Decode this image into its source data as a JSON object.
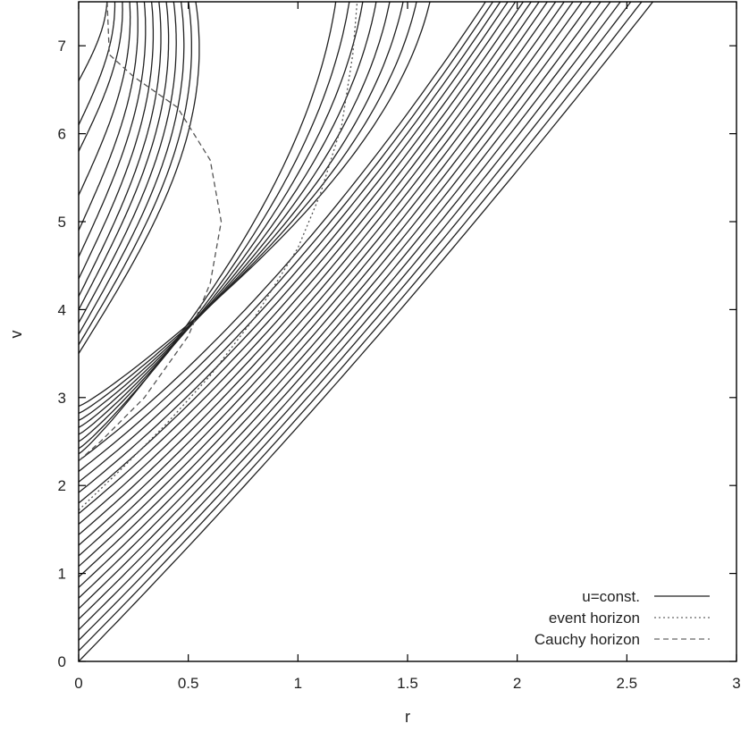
{
  "chart_data": {
    "type": "line",
    "title": "",
    "xlabel": "r",
    "ylabel": "v",
    "xlim": [
      0,
      3
    ],
    "ylim": [
      0,
      7.5
    ],
    "x_ticks": [
      "0",
      "0.5",
      "1",
      "1.5",
      "2",
      "2.5",
      "3"
    ],
    "y_ticks": [
      "0",
      "1",
      "2",
      "3",
      "4",
      "5",
      "6",
      "7"
    ],
    "grid": false,
    "legend_position": "bottom-right",
    "legend": [
      {
        "label": "u=const.",
        "style": "solid"
      },
      {
        "label": "event horizon",
        "style": "dotted"
      },
      {
        "label": "Cauchy horizon",
        "style": "dashed"
      }
    ],
    "series": [
      {
        "name": "u=const.",
        "style": "solid",
        "description_values": {
          "outgoing_lines_v_at_r0": [
            0.0,
            0.12,
            0.24,
            0.36,
            0.48,
            0.6,
            0.72,
            0.84,
            0.96,
            1.08,
            1.2,
            1.32,
            1.44,
            1.56,
            1.68,
            1.8,
            1.92,
            2.04,
            2.16,
            2.28
          ],
          "turning_curves_v_at_r0": [
            3.5,
            3.6,
            3.72,
            3.85,
            4.0,
            4.15,
            4.35,
            4.6,
            4.9,
            5.3,
            5.8,
            6.1,
            6.6
          ]
        }
      },
      {
        "name": "event horizon",
        "style": "dotted",
        "x": [
          0,
          0.2,
          0.4,
          0.6,
          0.8,
          1.0,
          1.1,
          1.2,
          1.25,
          1.27
        ],
        "y": [
          1.72,
          2.2,
          2.7,
          3.25,
          3.9,
          4.7,
          5.3,
          6.1,
          6.9,
          7.5
        ]
      },
      {
        "name": "Cauchy horizon",
        "style": "dashed",
        "x": [
          0,
          0.1,
          0.3,
          0.5,
          0.6,
          0.65,
          0.6,
          0.45,
          0.25,
          0.14,
          0.13
        ],
        "y": [
          2.28,
          2.5,
          3.0,
          3.7,
          4.3,
          5.0,
          5.7,
          6.3,
          6.65,
          6.9,
          7.5
        ]
      }
    ]
  }
}
